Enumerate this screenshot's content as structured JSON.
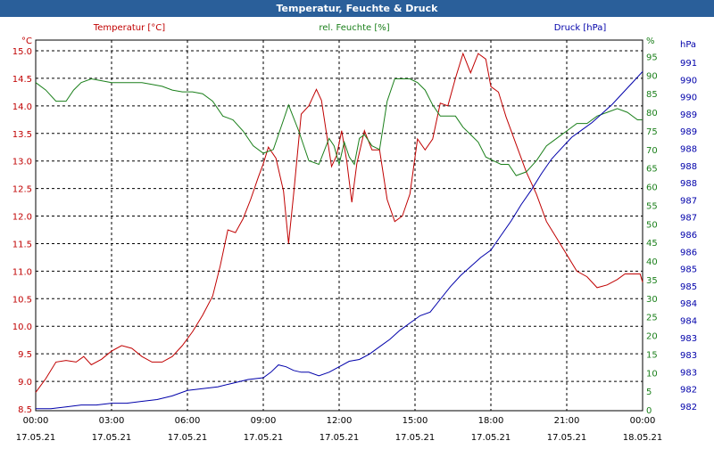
{
  "window": {
    "title": "Temperatur, Feuchte & Druck"
  },
  "chart_data": {
    "type": "line",
    "title": "Temperatur, Feuchte & Druck",
    "grid": true,
    "x_ticks": [
      {
        "hour": 0,
        "time": "00:00",
        "date": "17.05.21"
      },
      {
        "hour": 3,
        "time": "03:00",
        "date": "17.05.21"
      },
      {
        "hour": 6,
        "time": "06:00",
        "date": "17.05.21"
      },
      {
        "hour": 9,
        "time": "09:00",
        "date": "17.05.21"
      },
      {
        "hour": 12,
        "time": "12:00",
        "date": "17.05.21"
      },
      {
        "hour": 15,
        "time": "15:00",
        "date": "17.05.21"
      },
      {
        "hour": 18,
        "time": "18:00",
        "date": "17.05.21"
      },
      {
        "hour": 21,
        "time": "21:00",
        "date": "17.05.21"
      },
      {
        "hour": 24,
        "time": "00:00",
        "date": "18.05.21"
      }
    ],
    "x_range": [
      0,
      24
    ],
    "axes": {
      "temperature": {
        "label": "Temperatur [°C]",
        "unit": "°C",
        "color": "#c00000",
        "range": [
          8.5,
          15.1
        ],
        "ticks": [
          "8.5",
          "9.0",
          "9.5",
          "10.0",
          "10.5",
          "11.0",
          "11.5",
          "12.0",
          "12.5",
          "13.0",
          "13.5",
          "14.0",
          "14.5",
          "15.0"
        ]
      },
      "humidity": {
        "label": "rel. Feuchte [%]",
        "unit": "%",
        "color": "#1a7f1a",
        "range": [
          0,
          96
        ],
        "ticks": [
          "0",
          "5",
          "10",
          "15",
          "20",
          "25",
          "30",
          "35",
          "40",
          "45",
          "50",
          "55",
          "60",
          "65",
          "70",
          "75",
          "80",
          "85",
          "90",
          "95",
          "%"
        ]
      },
      "pressure": {
        "label": "Druck [hPa]",
        "unit": "hPa",
        "color": "#0000aa",
        "range": [
          981.65,
          991.55
        ],
        "ticks": [
          "982",
          "982",
          "983",
          "983",
          "983",
          "984",
          "984",
          "985",
          "985",
          "986",
          "986",
          "987",
          "987",
          "988",
          "988",
          "988",
          "989",
          "989",
          "990",
          "990",
          "991",
          "hPa"
        ]
      }
    },
    "series": [
      {
        "name": "Temperatur [°C]",
        "axis": "temperature",
        "color": "#c00000",
        "x": [
          0,
          0.4,
          0.8,
          1.2,
          1.6,
          1.9,
          2.2,
          2.6,
          3.0,
          3.4,
          3.8,
          4.2,
          4.6,
          5.0,
          5.4,
          5.8,
          6.2,
          6.6,
          7.0,
          7.3,
          7.6,
          7.9,
          8.2,
          8.5,
          8.8,
          9.0,
          9.2,
          9.5,
          9.8,
          10.0,
          10.2,
          10.5,
          10.8,
          11.1,
          11.3,
          11.5,
          11.7,
          11.9,
          12.1,
          12.3,
          12.5,
          12.7,
          13.0,
          13.3,
          13.6,
          13.9,
          14.2,
          14.5,
          14.8,
          15.1,
          15.4,
          15.7,
          16.0,
          16.3,
          16.6,
          16.9,
          17.2,
          17.5,
          17.8,
          18.0,
          18.3,
          18.6,
          19.0,
          19.4,
          19.8,
          20.2,
          20.6,
          21.0,
          21.4,
          21.8,
          22.2,
          22.6,
          23.0,
          23.3,
          23.6,
          23.9,
          24.0
        ],
        "values": [
          8.8,
          9.05,
          9.35,
          9.38,
          9.35,
          9.45,
          9.3,
          9.4,
          9.55,
          9.65,
          9.6,
          9.45,
          9.35,
          9.35,
          9.45,
          9.65,
          9.9,
          10.2,
          10.55,
          11.1,
          11.75,
          11.7,
          11.95,
          12.3,
          12.7,
          12.95,
          13.25,
          13.05,
          12.45,
          11.5,
          12.4,
          13.85,
          14.0,
          14.3,
          14.1,
          13.5,
          12.9,
          13.1,
          13.55,
          13.0,
          12.25,
          12.95,
          13.55,
          13.2,
          13.2,
          12.3,
          11.9,
          12.0,
          12.4,
          13.4,
          13.2,
          13.4,
          14.05,
          14.0,
          14.5,
          14.95,
          14.6,
          14.95,
          14.85,
          14.35,
          14.25,
          13.8,
          13.3,
          12.8,
          12.4,
          11.9,
          11.6,
          11.3,
          11.0,
          10.9,
          10.7,
          10.75,
          10.85,
          10.95,
          10.95,
          10.95,
          10.8
        ]
      },
      {
        "name": "rel. Feuchte [%]",
        "axis": "humidity",
        "color": "#1a7f1a",
        "x": [
          0,
          0.4,
          0.8,
          1.2,
          1.5,
          1.8,
          2.2,
          2.6,
          3.0,
          3.4,
          3.8,
          4.2,
          4.6,
          5.0,
          5.4,
          5.8,
          6.2,
          6.6,
          7.0,
          7.4,
          7.8,
          8.2,
          8.6,
          9.0,
          9.4,
          9.8,
          10.0,
          10.4,
          10.8,
          11.2,
          11.6,
          11.8,
          12.0,
          12.2,
          12.4,
          12.6,
          12.8,
          13.0,
          13.3,
          13.6,
          13.9,
          14.2,
          14.5,
          14.8,
          15.1,
          15.4,
          15.7,
          16.0,
          16.3,
          16.6,
          16.9,
          17.2,
          17.5,
          17.8,
          18.1,
          18.4,
          18.7,
          19.0,
          19.4,
          19.8,
          20.2,
          20.6,
          21.0,
          21.4,
          21.8,
          22.2,
          22.6,
          23.0,
          23.4,
          23.8,
          24.0
        ],
        "values": [
          88,
          86,
          83,
          83,
          86,
          88,
          89,
          88.5,
          88,
          88,
          88,
          88,
          87.5,
          87,
          86,
          85.5,
          85.5,
          85,
          83,
          79,
          78,
          75,
          71,
          69,
          70,
          78,
          82,
          75,
          67,
          66,
          73,
          71,
          66,
          72,
          68,
          66,
          73,
          74,
          71,
          70,
          83,
          89,
          89,
          89,
          88,
          86,
          82,
          79,
          79,
          79,
          76,
          74,
          72,
          68,
          67,
          66,
          66,
          63,
          64,
          67,
          71,
          73,
          75,
          77,
          77,
          79,
          80,
          81,
          80,
          78,
          78
        ]
      },
      {
        "name": "Druck [hPa]",
        "axis": "pressure",
        "color": "#0000aa",
        "x": [
          0,
          0.6,
          1.2,
          1.8,
          2.4,
          3.0,
          3.6,
          4.2,
          4.8,
          5.4,
          6.0,
          6.6,
          7.2,
          7.8,
          8.4,
          9.0,
          9.3,
          9.6,
          9.9,
          10.2,
          10.5,
          10.8,
          11.2,
          11.6,
          12.0,
          12.4,
          12.8,
          13.2,
          13.6,
          14.0,
          14.4,
          14.8,
          15.2,
          15.6,
          16.0,
          16.4,
          16.8,
          17.2,
          17.6,
          18.0,
          18.4,
          18.8,
          19.2,
          19.6,
          20.0,
          20.4,
          20.8,
          21.2,
          21.6,
          22.0,
          22.4,
          22.8,
          23.2,
          23.6,
          24.0
        ],
        "values": [
          981.95,
          981.95,
          982.0,
          982.05,
          982.05,
          982.1,
          982.1,
          982.15,
          982.2,
          982.3,
          982.45,
          982.5,
          982.55,
          982.65,
          982.75,
          982.8,
          982.95,
          983.15,
          983.1,
          983.0,
          982.95,
          982.95,
          982.85,
          982.95,
          983.1,
          983.25,
          983.3,
          983.45,
          983.65,
          983.85,
          984.1,
          984.3,
          984.5,
          984.6,
          984.95,
          985.3,
          985.6,
          985.85,
          986.1,
          986.3,
          986.7,
          987.1,
          987.55,
          987.95,
          988.4,
          988.8,
          989.1,
          989.4,
          989.6,
          989.8,
          990.05,
          990.3,
          990.6,
          990.9,
          991.2
        ]
      }
    ]
  }
}
